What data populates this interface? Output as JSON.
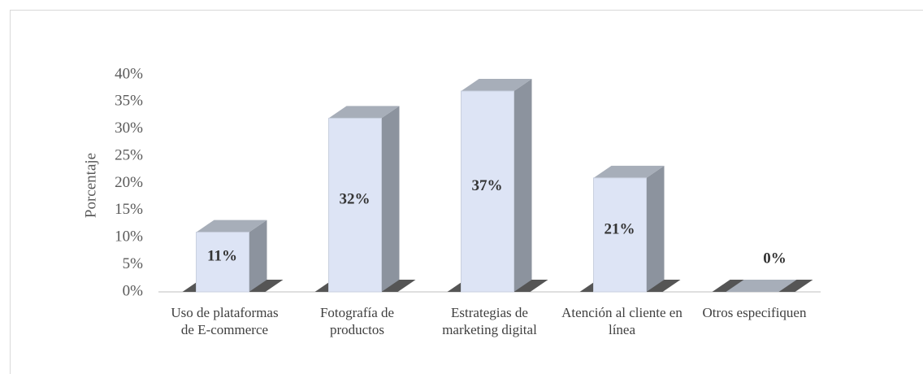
{
  "chart_data": {
    "type": "bar3d",
    "y_axis_label": "Porcentaje",
    "categories": [
      "Uso de plataformas de E-commerce",
      "Fotografía de productos",
      "Estrategias de marketing digital",
      "Atención al cliente en línea",
      "Otros especifiquen"
    ],
    "values": [
      11,
      32,
      37,
      21,
      0
    ],
    "value_labels": [
      "11%",
      "32%",
      "37%",
      "21%",
      "0%"
    ],
    "color": "#dde4f5",
    "ylim": [
      0,
      40
    ],
    "yticks": [
      {
        "value": 0,
        "label": "0%"
      },
      {
        "value": 5,
        "label": "5%"
      },
      {
        "value": 10,
        "label": "10%"
      },
      {
        "value": 15,
        "label": "15%"
      },
      {
        "value": 20,
        "label": "20%"
      },
      {
        "value": 25,
        "label": "25%"
      },
      {
        "value": 30,
        "label": "30%"
      },
      {
        "value": 35,
        "label": "35%"
      },
      {
        "value": 40,
        "label": "40%"
      }
    ],
    "grid": false
  }
}
